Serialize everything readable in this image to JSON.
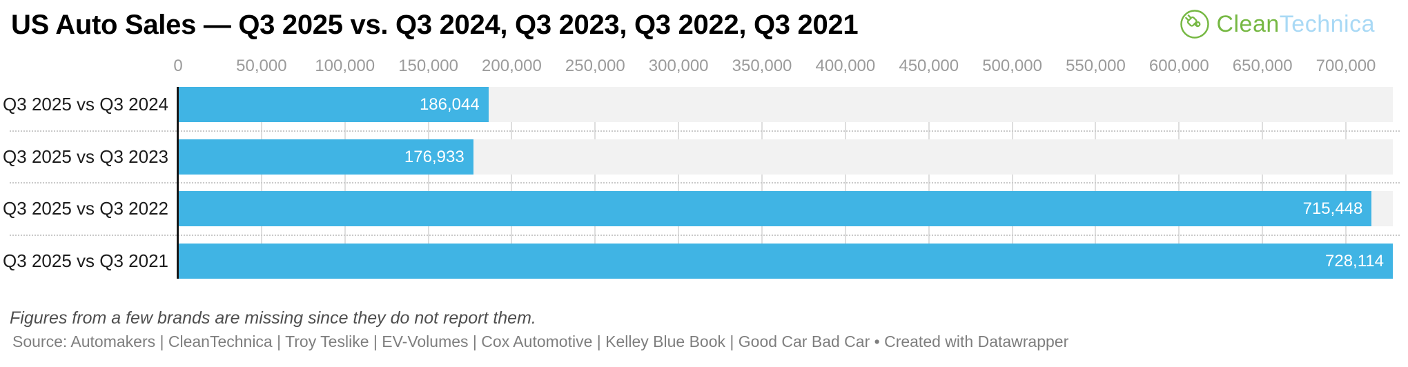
{
  "header": {
    "title": "US Auto Sales — Q3 2025 vs. Q3 2024, Q3 2023, Q3 2022, Q3 2021",
    "logo": {
      "icon": "plug-in-circle-icon",
      "clean": "Clean",
      "technica": "Technica",
      "green": "#76b843",
      "light_blue": "#a9d9f5"
    }
  },
  "chart_data": {
    "type": "bar",
    "orientation": "horizontal",
    "title": "US Auto Sales — Q3 2025 vs. Q3 2024, Q3 2023, Q3 2022, Q3 2021",
    "categories": [
      "Q3 2025 vs Q3 2024",
      "Q3 2025 vs Q3 2023",
      "Q3 2025 vs Q3 2022",
      "Q3 2025 vs Q3 2021"
    ],
    "values": [
      186044,
      176933,
      715448,
      728114
    ],
    "value_labels": [
      "186,044",
      "176,933",
      "715,448",
      "728,114"
    ],
    "xlim": [
      0,
      728114
    ],
    "x_ticks": [
      0,
      50000,
      100000,
      150000,
      200000,
      250000,
      300000,
      350000,
      400000,
      450000,
      500000,
      550000,
      600000,
      650000,
      700000
    ],
    "x_tick_labels": [
      "0",
      "50,000",
      "100,000",
      "150,000",
      "200,000",
      "250,000",
      "300,000",
      "350,000",
      "400,000",
      "450,000",
      "500,000",
      "550,000",
      "600,000",
      "650,000",
      "700,000"
    ],
    "grid": true,
    "legend": false,
    "bar_color": "#40b4e4",
    "track_color": "#f2f2f2",
    "gridline_color": "#dedede",
    "axis_line_color": "#161616",
    "value_label_color": "#ffffff"
  },
  "footer": {
    "note": "Figures from a few brands are missing since they do not report them.",
    "source": "Source: Automakers | CleanTechnica | Troy Teslike | EV-Volumes | Cox Automotive | Kelley Blue Book | Good Car Bad Car • ",
    "credit": "Created with Datawrapper"
  }
}
